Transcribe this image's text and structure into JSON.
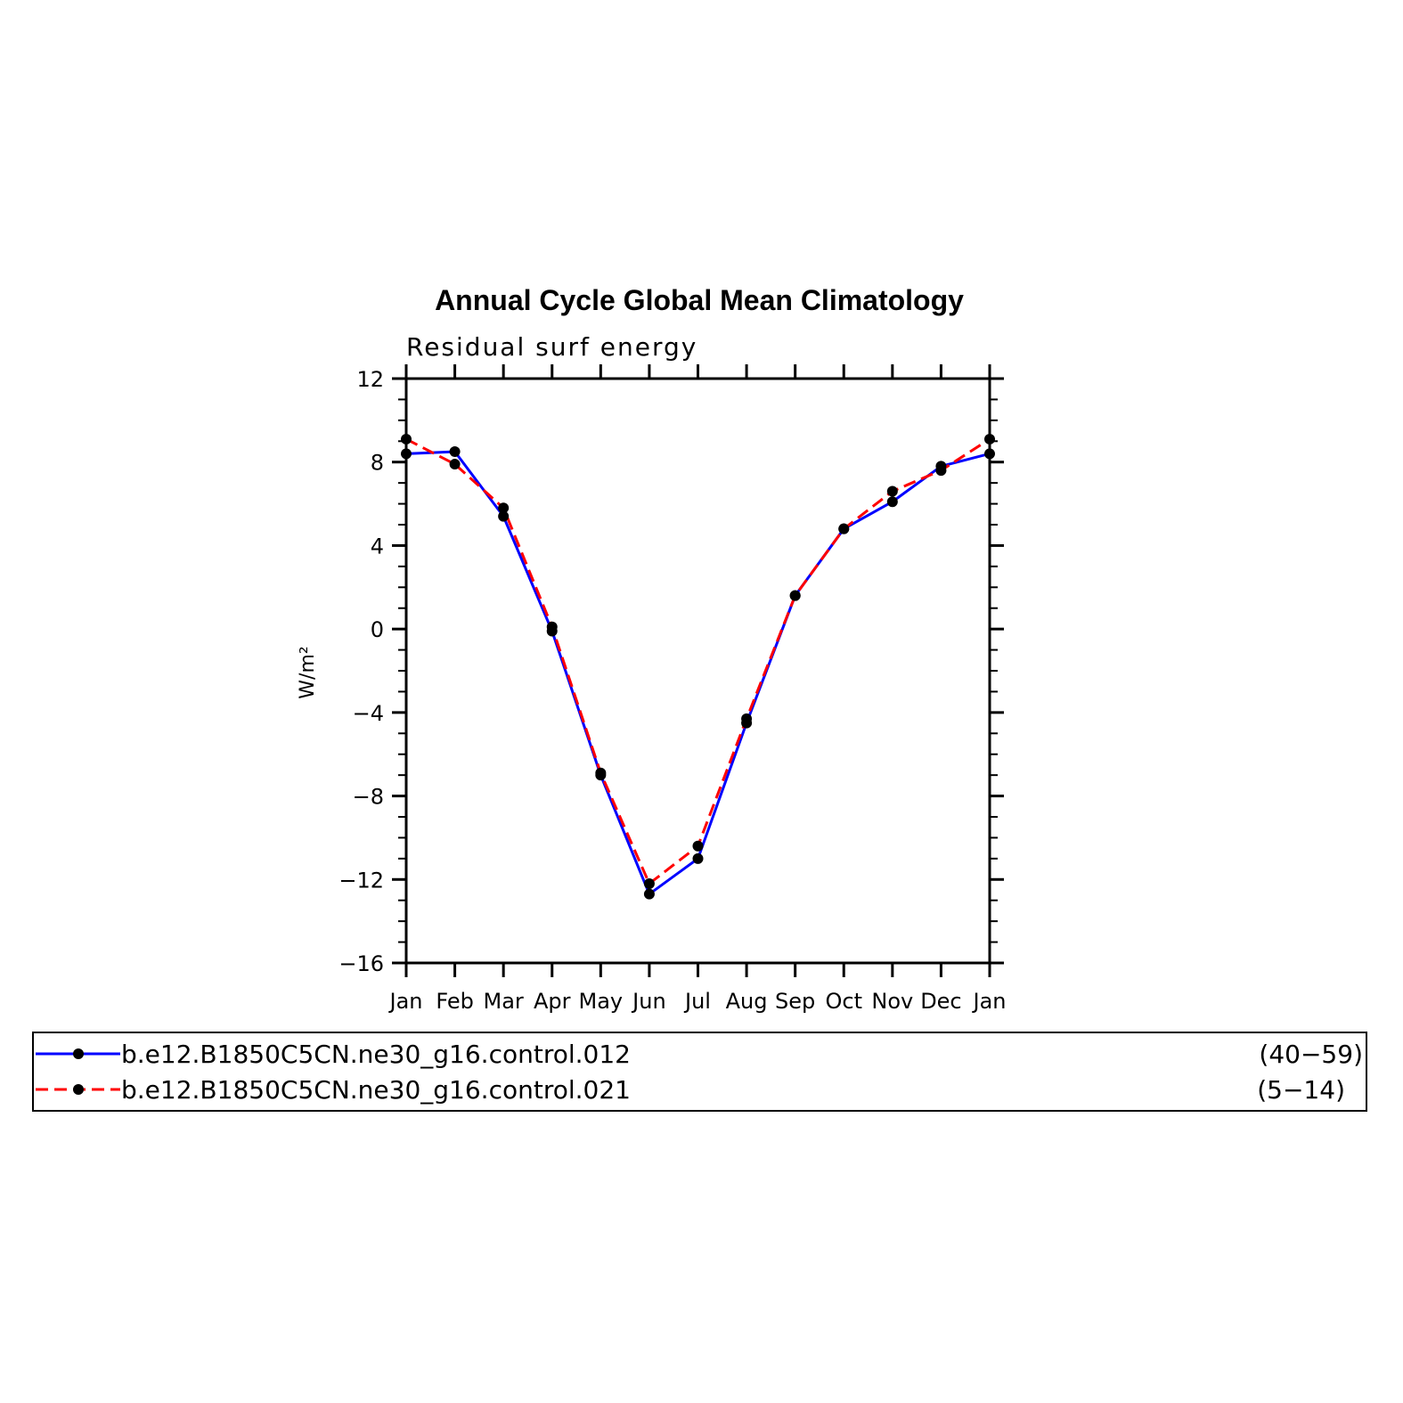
{
  "chart_data": {
    "type": "line",
    "title": "Annual Cycle Global Mean Climatology",
    "subtitle": "Residual surf energy",
    "ylabel": "W/m²",
    "categories": [
      "Jan",
      "Feb",
      "Mar",
      "Apr",
      "May",
      "Jun",
      "Jul",
      "Aug",
      "Sep",
      "Oct",
      "Nov",
      "Dec",
      "Jan"
    ],
    "ylim": [
      -16,
      12
    ],
    "y_ticks": [
      12,
      8,
      4,
      0,
      -4,
      -8,
      -12,
      -16
    ],
    "y_tick_labels": [
      "12",
      "8",
      "4",
      "0",
      "−4",
      "−8",
      "−12",
      "−16"
    ],
    "grid": false,
    "legend_position": "bottom",
    "series": [
      {
        "name": "b.e12.B1850C5CN.ne30_g16.control.012",
        "years": "(40−59)",
        "color": "#0000ff",
        "style": "solid",
        "values": [
          8.4,
          8.5,
          5.4,
          -0.1,
          -7.0,
          -12.7,
          -11.0,
          -4.5,
          1.6,
          4.8,
          6.1,
          7.8,
          8.4
        ]
      },
      {
        "name": "b.e12.B1850C5CN.ne30_g16.control.021",
        "years": "(5−14)",
        "color": "#ff0000",
        "style": "dashed",
        "values": [
          9.1,
          7.9,
          5.8,
          0.1,
          -6.9,
          -12.2,
          -10.4,
          -4.3,
          1.6,
          4.8,
          6.6,
          7.6,
          9.1
        ]
      }
    ]
  }
}
